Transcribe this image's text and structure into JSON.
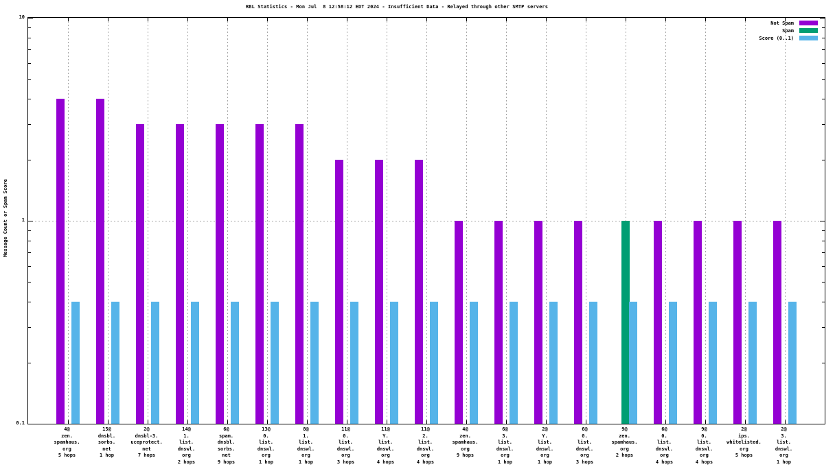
{
  "chart_data": {
    "type": "bar",
    "title": "RBL Statistics - Mon Jul  8 12:58:12 EDT 2024 - Insufficient Data - Relayed through other SMTP servers",
    "ylabel": "Message Count or Spam Score",
    "yscale": "log",
    "ylim": [
      0.1,
      10
    ],
    "grid": {
      "horizontal_line_at": 1,
      "vertical_lines": "at every category tick",
      "style": "dotted-gray"
    },
    "legend_position": "top-right-inside",
    "yticks": [
      {
        "label": "10",
        "value": 10
      },
      {
        "label": "1",
        "value": 1
      },
      {
        "label": "0.1",
        "value": 0.1
      }
    ],
    "yticks_minor": [
      9,
      8,
      7,
      6,
      5,
      4,
      3,
      2,
      0.9,
      0.8,
      0.7,
      0.6,
      0.5,
      0.4,
      0.3,
      0.2
    ],
    "legend": [
      {
        "label": "Not Spam",
        "color": "#9400d3"
      },
      {
        "label": "Spam",
        "color": "#009e73"
      },
      {
        "label": "Score (0..1)",
        "color": "#56b4e9"
      }
    ],
    "categories": [
      {
        "lines": [
          "4@",
          "zen.",
          "spamhaus.",
          "org",
          "5 hops"
        ]
      },
      {
        "lines": [
          "15@",
          "dnsbl.",
          "sorbs.",
          "net",
          "1 hop"
        ]
      },
      {
        "lines": [
          "2@",
          "dnsbl-3.",
          "uceprotect.",
          "net",
          "7 hops"
        ]
      },
      {
        "lines": [
          "14@",
          "1.",
          "list.",
          "dnswl.",
          "org",
          "2 hops"
        ]
      },
      {
        "lines": [
          "6@",
          "spam.",
          "dnsbl.",
          "sorbs.",
          "net",
          "9 hops"
        ]
      },
      {
        "lines": [
          "13@",
          "0.",
          "list.",
          "dnswl.",
          "org",
          "1 hop"
        ]
      },
      {
        "lines": [
          "8@",
          "1.",
          "list.",
          "dnswl.",
          "org",
          "1 hop"
        ]
      },
      {
        "lines": [
          "11@",
          "0.",
          "list.",
          "dnswl.",
          "org",
          "3 hops"
        ]
      },
      {
        "lines": [
          "11@",
          "Y.",
          "list.",
          "dnswl.",
          "org",
          "4 hops"
        ]
      },
      {
        "lines": [
          "11@",
          "2.",
          "list.",
          "dnswl.",
          "org",
          "4 hops"
        ]
      },
      {
        "lines": [
          "4@",
          "zen.",
          "spamhaus.",
          "org",
          "9 hops"
        ]
      },
      {
        "lines": [
          "6@",
          "3.",
          "list.",
          "dnswl.",
          "org",
          "1 hop"
        ]
      },
      {
        "lines": [
          "2@",
          "Y.",
          "list.",
          "dnswl.",
          "org",
          "1 hop"
        ]
      },
      {
        "lines": [
          "6@",
          "0.",
          "list.",
          "dnswl.",
          "org",
          "3 hops"
        ]
      },
      {
        "lines": [
          "9@",
          "zen.",
          "spamhaus.",
          "org",
          "2 hops"
        ]
      },
      {
        "lines": [
          "6@",
          "0.",
          "list.",
          "dnswl.",
          "org",
          "4 hops"
        ]
      },
      {
        "lines": [
          "9@",
          "0.",
          "list.",
          "dnswl.",
          "org",
          "4 hops"
        ]
      },
      {
        "lines": [
          "2@",
          "ips.",
          "whitelisted.",
          "org",
          "5 hops"
        ]
      },
      {
        "lines": [
          "2@",
          "3.",
          "list.",
          "dnswl.",
          "org",
          "1 hop"
        ]
      }
    ],
    "series": [
      {
        "name": "Not Spam",
        "color": "#9400d3",
        "values": [
          4,
          4,
          3,
          3,
          3,
          3,
          3,
          2,
          2,
          2,
          1,
          1,
          1,
          1,
          null,
          1,
          1,
          1,
          1
        ]
      },
      {
        "name": "Spam",
        "color": "#009e73",
        "values": [
          null,
          null,
          null,
          null,
          null,
          null,
          null,
          null,
          null,
          null,
          null,
          null,
          null,
          null,
          1,
          null,
          null,
          null,
          null
        ]
      },
      {
        "name": "Score (0..1)",
        "color": "#56b4e9",
        "values": [
          0.4,
          0.4,
          0.4,
          0.4,
          0.4,
          0.4,
          0.4,
          0.4,
          0.4,
          0.4,
          0.4,
          0.4,
          0.4,
          0.4,
          0.4,
          0.4,
          0.4,
          0.4,
          0.4
        ]
      }
    ]
  }
}
